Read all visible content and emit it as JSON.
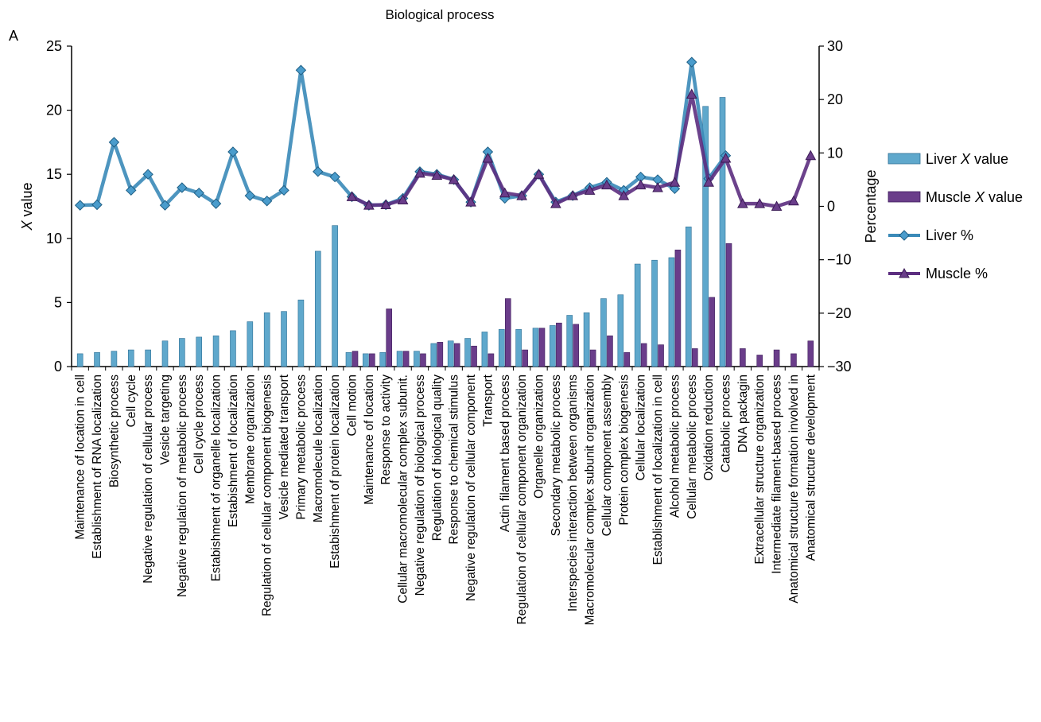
{
  "chart_data": {
    "type": "bar",
    "title": "Biological process",
    "panel_label": "A",
    "ylabel": "X value",
    "ylabel_parts": [
      "X",
      " value"
    ],
    "y2label": "Percentage",
    "ylim": [
      0,
      25
    ],
    "y2lim": [
      -30,
      30
    ],
    "yticks": [
      "0",
      "5",
      "10",
      "15",
      "20",
      "25"
    ],
    "y2ticks": [
      "−30",
      "−20",
      "−10",
      "0",
      "10",
      "20",
      "30"
    ],
    "categories": [
      "Maintenance of location in cell",
      "Establishment of RNA localization",
      "Biosynthetic process",
      "Cell cycle",
      "Negative regulation of cellular process",
      "Vesicle targeting",
      "Negative regulation of metabolic process",
      "Cell cycle process",
      "Estabishment of organelle localization",
      "Estabishment of localization",
      "Membrane organization",
      "Regulation of cellular component biogenesis",
      "Vesicle mediated transport",
      "Primary metabolic process",
      "Macromolecule localization",
      "Estabishment of protein localization",
      "Cell motion",
      "Maintenance of location",
      "Response to activity",
      "Cellular macromolecular complex subunit.",
      "Negative regulation of biological process",
      "Regulation of biological quality",
      "Response to chemical stimulus",
      "Negative regulation of cellular component",
      "Transport",
      "Actin filament based process",
      "Regulation of cellular component organization",
      "Organelle organization",
      "Secondary metabolic process",
      "Interspecies interaction between organisms",
      "Macromolecular complex subunit organization",
      "Cellular component assembly",
      "Protein complex biogenesis",
      "Cellular localization",
      "Establishment of localization in cell",
      "Alcohol metabolic process",
      "Cellular metabolic process",
      "Oxidation reduction",
      "Catabolic process",
      "DNA packagin",
      "Extracellular structure organization",
      "Intermediate filament-based process",
      "Anatomical structure formation involved in",
      "Anatomical structure development"
    ],
    "series": [
      {
        "name": "Liver X value",
        "name_parts": [
          "Liver ",
          "X",
          " value"
        ],
        "kind": "bar",
        "axis": "left",
        "color": "#5fa8cc",
        "values": [
          1.0,
          1.1,
          1.2,
          1.3,
          1.3,
          2.0,
          2.2,
          2.3,
          2.4,
          2.8,
          3.5,
          4.2,
          4.3,
          5.2,
          9.0,
          11.0,
          1.1,
          1.0,
          1.1,
          1.2,
          1.2,
          1.8,
          2.0,
          2.2,
          2.7,
          2.9,
          2.9,
          3.0,
          3.2,
          4.0,
          4.2,
          5.3,
          5.6,
          8.0,
          8.3,
          8.5,
          10.9,
          20.3,
          21.0,
          null,
          null,
          null,
          null,
          null
        ]
      },
      {
        "name": "Muscle X value",
        "name_parts": [
          "Muscle ",
          "X",
          " value"
        ],
        "kind": "bar",
        "axis": "left",
        "color": "#6a3d8a",
        "values": [
          null,
          null,
          null,
          null,
          null,
          null,
          null,
          null,
          null,
          null,
          null,
          null,
          null,
          null,
          null,
          null,
          1.2,
          1.0,
          4.5,
          1.2,
          1.0,
          1.9,
          1.8,
          1.6,
          1.0,
          5.3,
          1.3,
          3.0,
          3.4,
          3.3,
          1.3,
          2.4,
          1.1,
          1.8,
          1.7,
          9.1,
          1.4,
          5.4,
          9.6,
          1.4,
          0.9,
          1.3,
          1.0,
          2.0
        ]
      },
      {
        "name": "Liver %",
        "name_parts": [
          "Liver %"
        ],
        "kind": "line",
        "marker": "diamond",
        "axis": "right",
        "color": "#3a8ab8",
        "values": [
          0.2,
          0.3,
          12.0,
          3.0,
          6.0,
          0.2,
          3.5,
          2.5,
          0.5,
          10.2,
          2.0,
          1.0,
          3.0,
          25.5,
          6.5,
          5.5,
          1.8,
          0.2,
          0.3,
          1.5,
          6.5,
          6.0,
          5.0,
          0.8,
          10.2,
          1.5,
          2.0,
          6.0,
          0.8,
          2.0,
          3.5,
          4.5,
          3.0,
          5.5,
          5.0,
          3.3,
          27.0,
          5.2,
          9.5,
          null,
          null,
          null,
          null,
          null
        ]
      },
      {
        "name": "Muscle %",
        "name_parts": [
          "Muscle %"
        ],
        "kind": "line",
        "marker": "triangle",
        "axis": "right",
        "color": "#5c2e80",
        "values": [
          null,
          null,
          null,
          null,
          null,
          null,
          null,
          null,
          null,
          null,
          null,
          null,
          null,
          null,
          null,
          null,
          1.8,
          0.2,
          0.3,
          1.2,
          6.2,
          5.8,
          5.0,
          0.8,
          9.0,
          2.5,
          2.0,
          6.0,
          0.5,
          2.0,
          3.0,
          4.0,
          2.0,
          4.0,
          3.5,
          4.5,
          21.0,
          4.5,
          9.0,
          0.5,
          0.5,
          0.0,
          1.0,
          9.5
        ]
      }
    ],
    "grid": false,
    "legend_position": "right"
  }
}
